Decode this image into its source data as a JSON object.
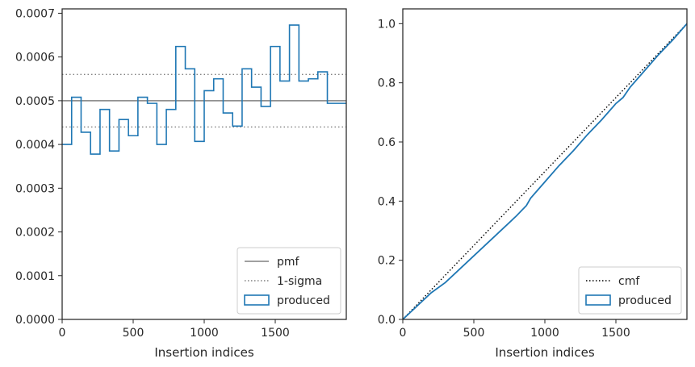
{
  "chart_data": [
    {
      "type": "step",
      "xlabel": "Insertion indices",
      "ylabel": "",
      "xlim": [
        0,
        2000
      ],
      "ylim": [
        0,
        0.00071
      ],
      "x_ticks": [
        0,
        500,
        1000,
        1500
      ],
      "x_tick_labels": [
        "0",
        "500",
        "1000",
        "1500"
      ],
      "y_ticks": [
        0,
        0.0001,
        0.0002,
        0.0003,
        0.0004,
        0.0005,
        0.0006,
        0.0007
      ],
      "y_tick_labels": [
        "0.0000",
        "0.0001",
        "0.0002",
        "0.0003",
        "0.0004",
        "0.0005",
        "0.0006",
        "0.0007"
      ],
      "grid": false,
      "legend_position": "lower-right",
      "reference_lines": [
        {
          "name": "pmf",
          "y": 0.0005,
          "style": "solid",
          "color": "#808080"
        },
        {
          "name": "1-sigma",
          "y": 0.00056,
          "style": "dotted",
          "color": "#808080"
        },
        {
          "name": "1-sigma",
          "y": 0.00044,
          "style": "dotted",
          "color": "#808080"
        }
      ],
      "series": [
        {
          "name": "produced",
          "color": "#1f77b4",
          "bin_edges": [
            0,
            66.7,
            133.3,
            200,
            266.7,
            333.3,
            400,
            466.7,
            533.3,
            600,
            666.7,
            733.3,
            800,
            866.7,
            933.3,
            1000,
            1066.7,
            1133.3,
            1200,
            1266.7,
            1333.3,
            1400,
            1466.7,
            1533.3,
            1600,
            1666.7,
            1733.3,
            1800,
            1866.7,
            1933.3,
            2000
          ],
          "values": [
            0.0004,
            0.000508,
            0.000428,
            0.000378,
            0.00048,
            0.000385,
            0.000457,
            0.00042,
            0.000508,
            0.000494,
            0.0004,
            0.00048,
            0.000624,
            0.000573,
            0.000407,
            0.000523,
            0.00055,
            0.000472,
            0.000442,
            0.000573,
            0.000531,
            0.000487,
            0.000624,
            0.000545,
            0.000673,
            0.000545,
            0.00055,
            0.000566,
            0.000494,
            0.000494
          ]
        }
      ],
      "legend": [
        "pmf",
        "1-sigma",
        "produced"
      ]
    },
    {
      "type": "line",
      "xlabel": "Insertion indices",
      "ylabel": "",
      "xlim": [
        0,
        2000
      ],
      "ylim": [
        0,
        1.05
      ],
      "x_ticks": [
        0,
        500,
        1000,
        1500
      ],
      "x_tick_labels": [
        "0",
        "500",
        "1000",
        "1500"
      ],
      "y_ticks": [
        0,
        0.2,
        0.4,
        0.6,
        0.8,
        1.0
      ],
      "y_tick_labels": [
        "0.0",
        "0.2",
        "0.4",
        "0.6",
        "0.8",
        "1.0"
      ],
      "grid": false,
      "legend_position": "lower-right",
      "series": [
        {
          "name": "cmf",
          "style": "dotted",
          "color": "#000000",
          "x": [
            0,
            2000
          ],
          "y": [
            0,
            1.0
          ]
        },
        {
          "name": "produced",
          "color": "#1f77b4",
          "x": [
            0,
            100,
            200,
            300,
            400,
            500,
            600,
            700,
            800,
            870,
            900,
            1000,
            1100,
            1200,
            1300,
            1400,
            1500,
            1550,
            1600,
            1700,
            1800,
            1900,
            2000
          ],
          "y": [
            0,
            0.045,
            0.09,
            0.125,
            0.17,
            0.215,
            0.26,
            0.305,
            0.35,
            0.385,
            0.41,
            0.465,
            0.52,
            0.57,
            0.625,
            0.675,
            0.73,
            0.75,
            0.785,
            0.84,
            0.895,
            0.945,
            1.0
          ]
        }
      ],
      "legend": [
        "cmf",
        "produced"
      ]
    }
  ]
}
